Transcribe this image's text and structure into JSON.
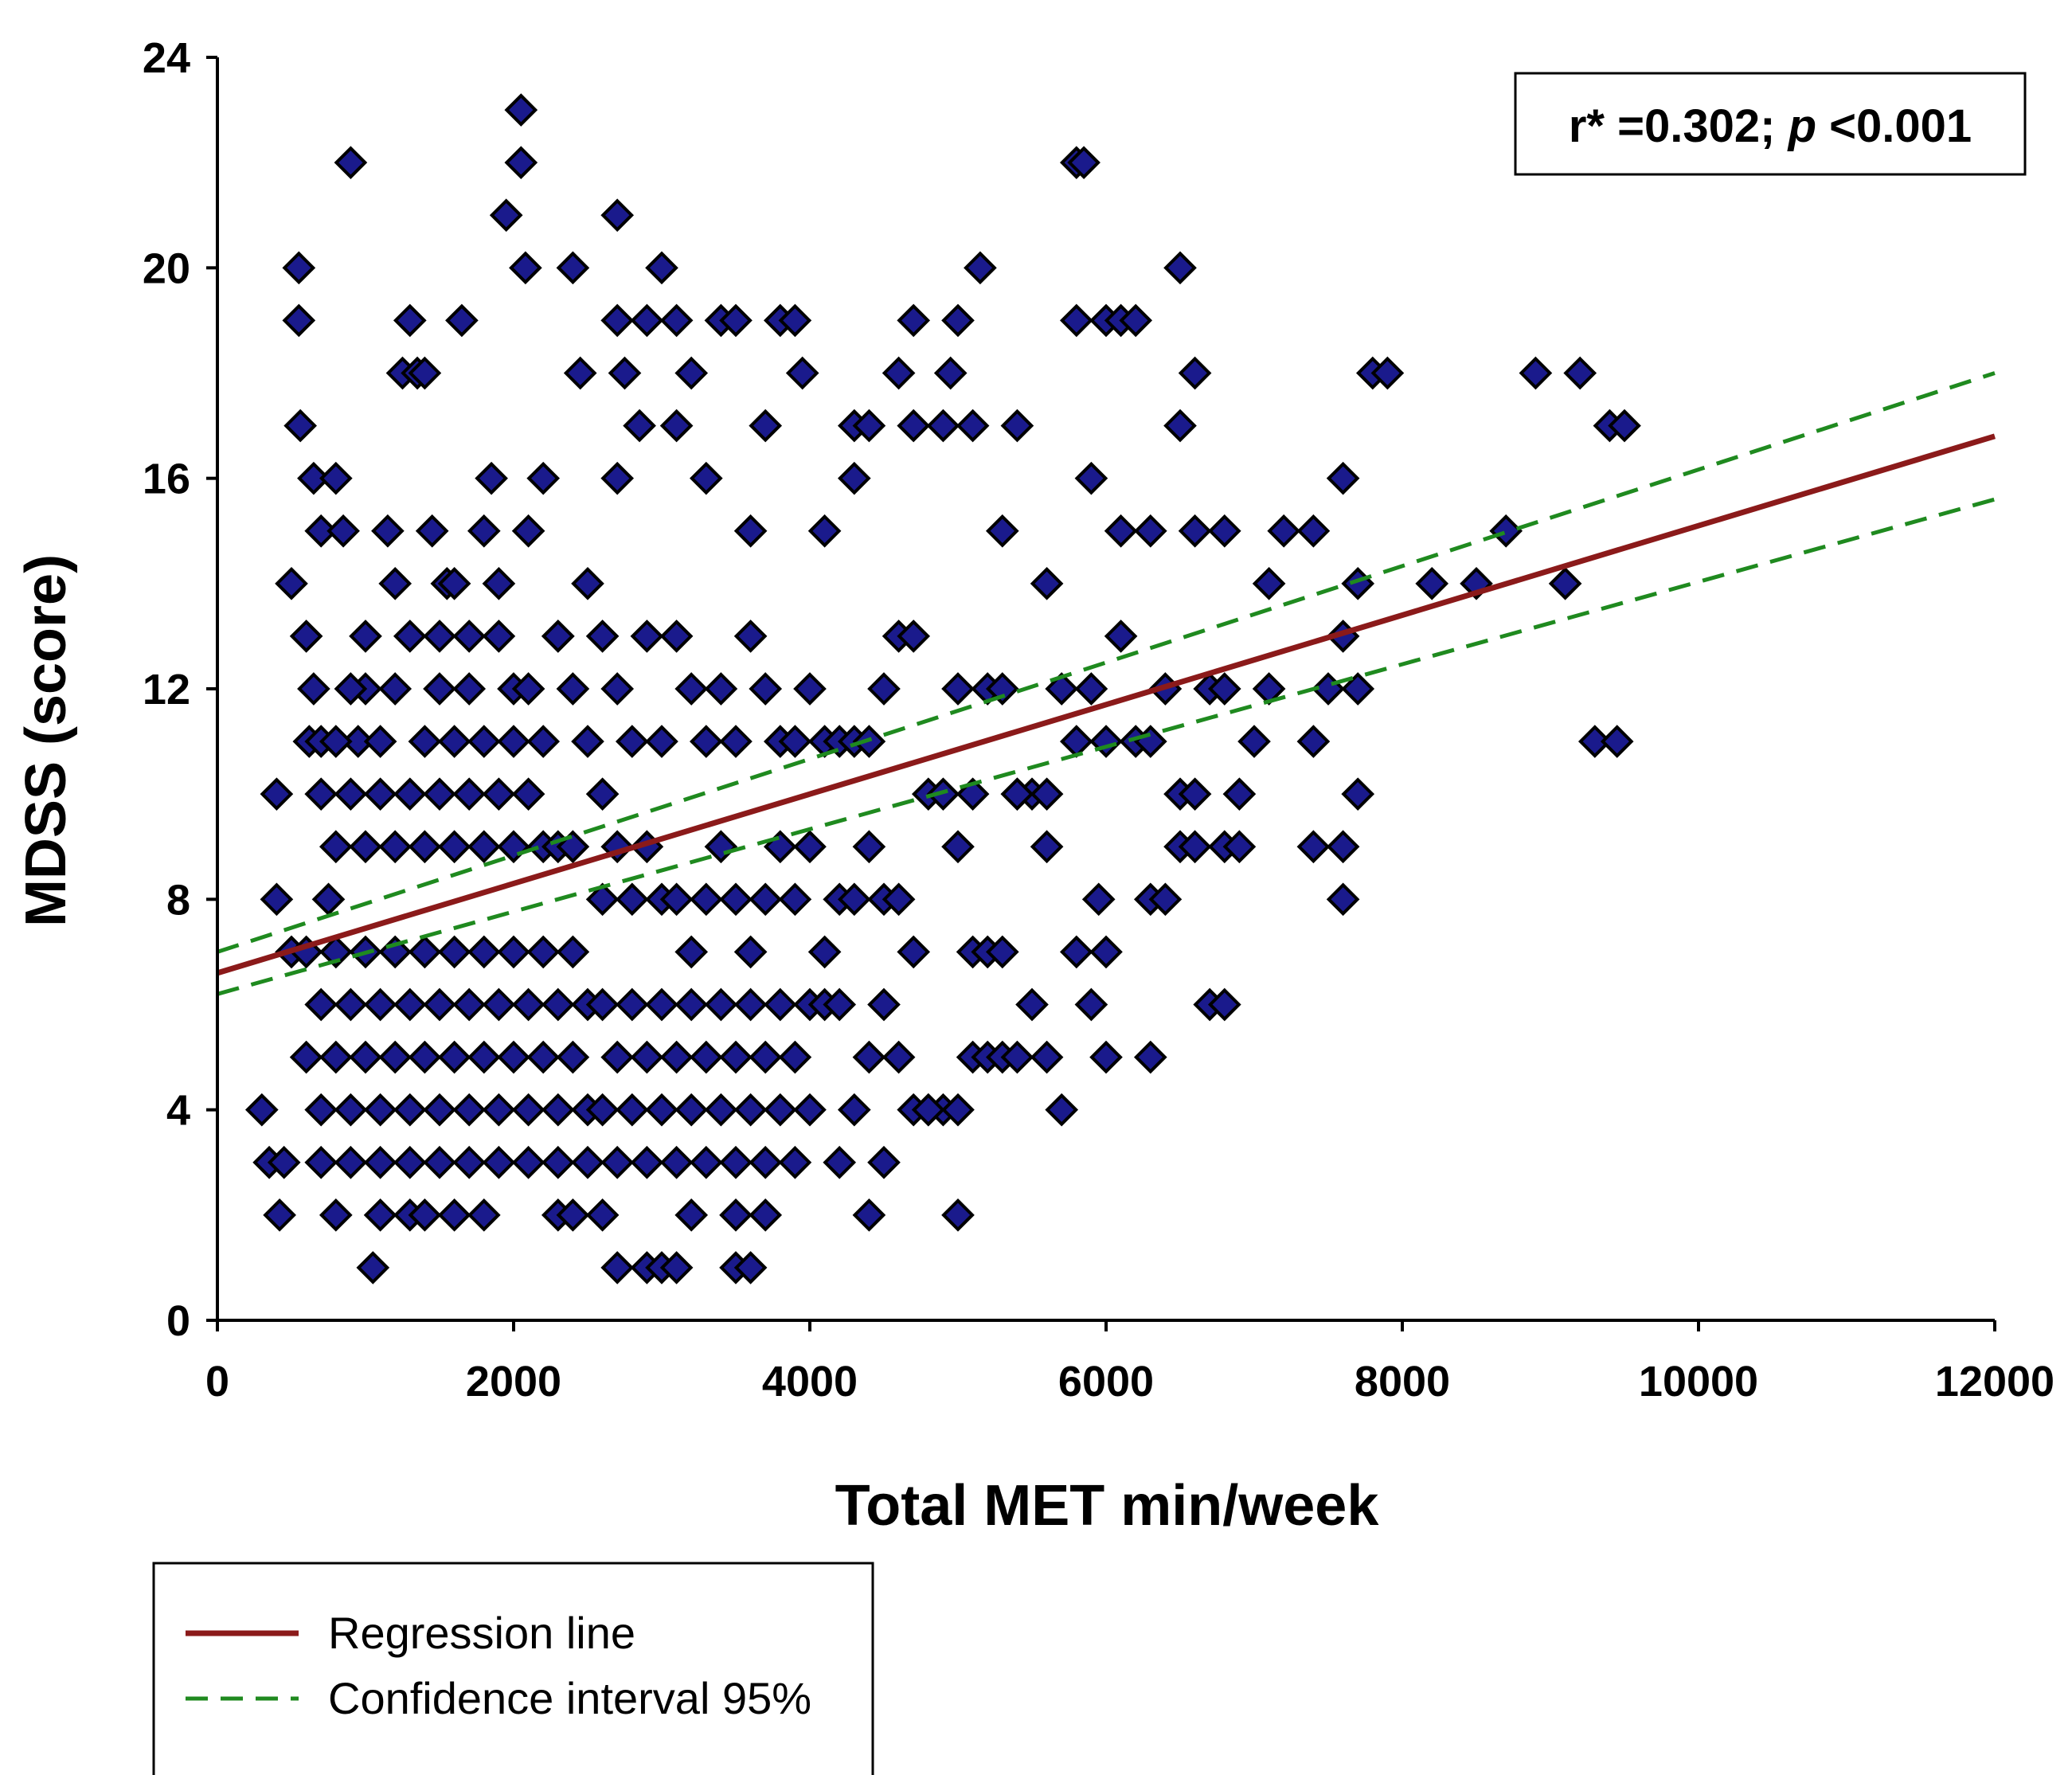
{
  "chart_data": {
    "type": "scatter",
    "title": "",
    "xlabel": "Total MET min/week",
    "ylabel": "MDSS (score)",
    "xlim": [
      0,
      12000
    ],
    "ylim": [
      0,
      24
    ],
    "xticks": [
      0,
      2000,
      4000,
      6000,
      8000,
      10000,
      12000
    ],
    "yticks": [
      0,
      4,
      8,
      12,
      16,
      20,
      24
    ],
    "grid": false,
    "annotation": {
      "r_label": "r* =0.302; ",
      "p_symbol": "p",
      "p_value": " <0.001"
    },
    "legend": {
      "position": "bottom-left",
      "entries": [
        {
          "label": "Regression line",
          "style": "solid",
          "color": "#8b1a1a"
        },
        {
          "label": "Confidence interval 95%",
          "style": "dashed",
          "color": "#1f8a1f"
        }
      ]
    },
    "regression": {
      "x": [
        0,
        12000
      ],
      "y": [
        6.6,
        16.8
      ],
      "color": "#8b1a1a"
    },
    "ci_upper": {
      "x": [
        0,
        12000
      ],
      "y": [
        7.0,
        18.0
      ],
      "color": "#1f8a1f"
    },
    "ci_lower": {
      "x": [
        0,
        12000
      ],
      "y": [
        6.2,
        15.6
      ],
      "color": "#1f8a1f"
    },
    "marker": {
      "shape": "diamond",
      "fill": "#1a1a8c",
      "stroke": "#000000"
    },
    "points": [
      [
        300,
        4
      ],
      [
        350,
        3
      ],
      [
        400,
        10
      ],
      [
        400,
        8
      ],
      [
        420,
        2
      ],
      [
        450,
        3
      ],
      [
        500,
        7
      ],
      [
        500,
        14
      ],
      [
        550,
        20
      ],
      [
        550,
        19
      ],
      [
        560,
        17
      ],
      [
        600,
        13
      ],
      [
        620,
        11
      ],
      [
        650,
        12
      ],
      [
        650,
        16
      ],
      [
        700,
        15
      ],
      [
        750,
        8
      ],
      [
        800,
        2
      ],
      [
        800,
        16
      ],
      [
        850,
        15
      ],
      [
        900,
        22
      ],
      [
        950,
        11
      ],
      [
        1000,
        12
      ],
      [
        1050,
        1
      ],
      [
        1100,
        2
      ],
      [
        1150,
        15
      ],
      [
        1200,
        14
      ],
      [
        1250,
        18
      ],
      [
        1300,
        19
      ],
      [
        1350,
        18
      ],
      [
        1400,
        18
      ],
      [
        1450,
        15
      ],
      [
        1500,
        13
      ],
      [
        1550,
        14
      ],
      [
        1600,
        14
      ],
      [
        1650,
        19
      ],
      [
        1700,
        13
      ],
      [
        1800,
        15
      ],
      [
        1850,
        16
      ],
      [
        1900,
        14
      ],
      [
        1950,
        21
      ],
      [
        2000,
        12
      ],
      [
        2050,
        23
      ],
      [
        2050,
        22
      ],
      [
        2080,
        20
      ],
      [
        2100,
        15
      ],
      [
        2200,
        16
      ],
      [
        2300,
        13
      ],
      [
        2400,
        20
      ],
      [
        2450,
        18
      ],
      [
        2500,
        14
      ],
      [
        2600,
        10
      ],
      [
        2700,
        21
      ],
      [
        2700,
        19
      ],
      [
        2750,
        18
      ],
      [
        2700,
        16
      ],
      [
        2850,
        17
      ],
      [
        2900,
        19
      ],
      [
        3000,
        20
      ],
      [
        3100,
        19
      ],
      [
        3100,
        17
      ],
      [
        3200,
        18
      ],
      [
        3300,
        16
      ],
      [
        3400,
        19
      ],
      [
        3500,
        19
      ],
      [
        3600,
        15
      ],
      [
        3700,
        17
      ],
      [
        3800,
        19
      ],
      [
        3900,
        19
      ],
      [
        3950,
        18
      ],
      [
        4100,
        15
      ],
      [
        4300,
        17
      ],
      [
        4300,
        16
      ],
      [
        4400,
        17
      ],
      [
        4600,
        18
      ],
      [
        4700,
        19
      ],
      [
        4700,
        17
      ],
      [
        4900,
        17
      ],
      [
        5000,
        19
      ],
      [
        4950,
        18
      ],
      [
        5100,
        17
      ],
      [
        5150,
        20
      ],
      [
        5300,
        15
      ],
      [
        5400,
        17
      ],
      [
        5600,
        14
      ],
      [
        5800,
        22
      ],
      [
        5850,
        22
      ],
      [
        5800,
        19
      ],
      [
        5900,
        16
      ],
      [
        6000,
        19
      ],
      [
        6100,
        19
      ],
      [
        6200,
        19
      ],
      [
        6100,
        15
      ],
      [
        6300,
        15
      ],
      [
        6500,
        17
      ],
      [
        6500,
        20
      ],
      [
        6600,
        18
      ],
      [
        6600,
        15
      ],
      [
        6800,
        15
      ],
      [
        7100,
        14
      ],
      [
        7200,
        15
      ],
      [
        7400,
        15
      ],
      [
        7600,
        16
      ],
      [
        7700,
        14
      ],
      [
        7800,
        18
      ],
      [
        7900,
        18
      ],
      [
        8200,
        14
      ],
      [
        8500,
        14
      ],
      [
        8700,
        15
      ],
      [
        8900,
        18
      ],
      [
        9100,
        14
      ],
      [
        9200,
        18
      ],
      [
        9300,
        11
      ],
      [
        9400,
        17
      ],
      [
        9450,
        11
      ],
      [
        9500,
        17
      ],
      [
        700,
        10
      ],
      [
        800,
        9
      ],
      [
        900,
        10
      ],
      [
        1000,
        9
      ],
      [
        1100,
        10
      ],
      [
        1200,
        9
      ],
      [
        1300,
        10
      ],
      [
        1400,
        9
      ],
      [
        1500,
        10
      ],
      [
        1600,
        9
      ],
      [
        1700,
        10
      ],
      [
        1800,
        9
      ],
      [
        1900,
        10
      ],
      [
        2000,
        9
      ],
      [
        2100,
        10
      ],
      [
        2200,
        9
      ],
      [
        2300,
        9
      ],
      [
        2400,
        9
      ],
      [
        600,
        7
      ],
      [
        700,
        6
      ],
      [
        800,
        7
      ],
      [
        900,
        6
      ],
      [
        1000,
        7
      ],
      [
        1100,
        6
      ],
      [
        1200,
        7
      ],
      [
        1300,
        6
      ],
      [
        1400,
        7
      ],
      [
        1500,
        6
      ],
      [
        1600,
        7
      ],
      [
        1700,
        6
      ],
      [
        1800,
        7
      ],
      [
        1900,
        6
      ],
      [
        2000,
        7
      ],
      [
        2100,
        6
      ],
      [
        2200,
        7
      ],
      [
        2300,
        6
      ],
      [
        2400,
        7
      ],
      [
        2500,
        6
      ],
      [
        600,
        5
      ],
      [
        700,
        4
      ],
      [
        800,
        5
      ],
      [
        900,
        4
      ],
      [
        1000,
        5
      ],
      [
        1100,
        4
      ],
      [
        1200,
        5
      ],
      [
        1300,
        4
      ],
      [
        1400,
        5
      ],
      [
        1500,
        4
      ],
      [
        1600,
        5
      ],
      [
        1700,
        4
      ],
      [
        1800,
        5
      ],
      [
        1900,
        4
      ],
      [
        2000,
        5
      ],
      [
        2100,
        4
      ],
      [
        2200,
        5
      ],
      [
        2300,
        4
      ],
      [
        2400,
        5
      ],
      [
        2500,
        4
      ],
      [
        700,
        3
      ],
      [
        900,
        3
      ],
      [
        1100,
        3
      ],
      [
        1300,
        3
      ],
      [
        1500,
        3
      ],
      [
        1700,
        3
      ],
      [
        1900,
        3
      ],
      [
        2100,
        3
      ],
      [
        2300,
        3
      ],
      [
        2500,
        3
      ],
      [
        1300,
        2
      ],
      [
        1400,
        2
      ],
      [
        1600,
        2
      ],
      [
        1800,
        2
      ],
      [
        2300,
        2
      ],
      [
        2400,
        2
      ],
      [
        2600,
        2
      ],
      [
        2700,
        1
      ],
      [
        2900,
        1
      ],
      [
        3000,
        1
      ],
      [
        3100,
        1
      ],
      [
        3200,
        2
      ],
      [
        3500,
        1
      ],
      [
        3600,
        1
      ],
      [
        3700,
        2
      ],
      [
        3500,
        2
      ],
      [
        700,
        11
      ],
      [
        800,
        11
      ],
      [
        900,
        12
      ],
      [
        1000,
        13
      ],
      [
        1100,
        11
      ],
      [
        1200,
        12
      ],
      [
        1300,
        13
      ],
      [
        1400,
        11
      ],
      [
        1500,
        12
      ],
      [
        1600,
        11
      ],
      [
        1700,
        12
      ],
      [
        1800,
        11
      ],
      [
        1900,
        13
      ],
      [
        2000,
        11
      ],
      [
        2100,
        12
      ],
      [
        2200,
        11
      ],
      [
        2300,
        13
      ],
      [
        2400,
        12
      ],
      [
        2500,
        11
      ],
      [
        2600,
        13
      ],
      [
        2700,
        12
      ],
      [
        2800,
        11
      ],
      [
        2900,
        13
      ],
      [
        3000,
        11
      ],
      [
        3100,
        13
      ],
      [
        3200,
        12
      ],
      [
        3300,
        11
      ],
      [
        3400,
        12
      ],
      [
        3500,
        11
      ],
      [
        3600,
        13
      ],
      [
        3700,
        12
      ],
      [
        3800,
        11
      ],
      [
        3900,
        11
      ],
      [
        4000,
        12
      ],
      [
        4100,
        11
      ],
      [
        4200,
        11
      ],
      [
        4300,
        11
      ],
      [
        4400,
        11
      ],
      [
        4500,
        12
      ],
      [
        4600,
        13
      ],
      [
        4700,
        13
      ],
      [
        4800,
        10
      ],
      [
        4900,
        10
      ],
      [
        5000,
        12
      ],
      [
        5100,
        10
      ],
      [
        5200,
        12
      ],
      [
        5300,
        12
      ],
      [
        5400,
        10
      ],
      [
        5500,
        10
      ],
      [
        5600,
        10
      ],
      [
        5700,
        12
      ],
      [
        5800,
        11
      ],
      [
        5900,
        12
      ],
      [
        6000,
        11
      ],
      [
        6100,
        13
      ],
      [
        6200,
        11
      ],
      [
        6300,
        11
      ],
      [
        6400,
        12
      ],
      [
        6500,
        10
      ],
      [
        6600,
        10
      ],
      [
        6700,
        12
      ],
      [
        6800,
        12
      ],
      [
        6900,
        10
      ],
      [
        7000,
        11
      ],
      [
        7100,
        12
      ],
      [
        7400,
        11
      ],
      [
        7500,
        12
      ],
      [
        7600,
        13
      ],
      [
        7700,
        12
      ],
      [
        7700,
        10
      ],
      [
        2600,
        8
      ],
      [
        2700,
        9
      ],
      [
        2800,
        8
      ],
      [
        2900,
        9
      ],
      [
        3000,
        8
      ],
      [
        3100,
        8
      ],
      [
        3200,
        7
      ],
      [
        3300,
        8
      ],
      [
        3400,
        9
      ],
      [
        3500,
        8
      ],
      [
        3600,
        7
      ],
      [
        3700,
        8
      ],
      [
        3800,
        9
      ],
      [
        3900,
        8
      ],
      [
        4000,
        9
      ],
      [
        4100,
        7
      ],
      [
        4200,
        8
      ],
      [
        4300,
        8
      ],
      [
        4400,
        9
      ],
      [
        4500,
        8
      ],
      [
        4600,
        8
      ],
      [
        4700,
        7
      ],
      [
        5000,
        9
      ],
      [
        5100,
        7
      ],
      [
        5200,
        7
      ],
      [
        5300,
        7
      ],
      [
        5400,
        10
      ],
      [
        5600,
        9
      ],
      [
        5800,
        7
      ],
      [
        5900,
        6
      ],
      [
        5950,
        8
      ],
      [
        6000,
        7
      ],
      [
        6300,
        8
      ],
      [
        6400,
        8
      ],
      [
        6500,
        9
      ],
      [
        6600,
        9
      ],
      [
        6800,
        9
      ],
      [
        6900,
        9
      ],
      [
        7400,
        9
      ],
      [
        7600,
        9
      ],
      [
        7600,
        8
      ],
      [
        2600,
        6
      ],
      [
        2700,
        5
      ],
      [
        2800,
        6
      ],
      [
        2900,
        5
      ],
      [
        3000,
        6
      ],
      [
        3100,
        5
      ],
      [
        3200,
        6
      ],
      [
        3300,
        5
      ],
      [
        3400,
        6
      ],
      [
        3500,
        5
      ],
      [
        3600,
        6
      ],
      [
        3700,
        5
      ],
      [
        3800,
        6
      ],
      [
        3900,
        5
      ],
      [
        4000,
        6
      ],
      [
        4100,
        6
      ],
      [
        4200,
        6
      ],
      [
        4300,
        4
      ],
      [
        4400,
        5
      ],
      [
        4500,
        6
      ],
      [
        4600,
        5
      ],
      [
        4700,
        4
      ],
      [
        4800,
        4
      ],
      [
        4900,
        4
      ],
      [
        5000,
        4
      ],
      [
        5100,
        5
      ],
      [
        5200,
        5
      ],
      [
        5300,
        5
      ],
      [
        5400,
        5
      ],
      [
        5500,
        6
      ],
      [
        5600,
        5
      ],
      [
        5700,
        4
      ],
      [
        6000,
        5
      ],
      [
        6300,
        5
      ],
      [
        6700,
        6
      ],
      [
        6800,
        6
      ],
      [
        2600,
        4
      ],
      [
        2700,
        3
      ],
      [
        2800,
        4
      ],
      [
        2900,
        3
      ],
      [
        3000,
        4
      ],
      [
        3100,
        3
      ],
      [
        3200,
        4
      ],
      [
        3300,
        3
      ],
      [
        3400,
        4
      ],
      [
        3500,
        3
      ],
      [
        3600,
        4
      ],
      [
        3700,
        3
      ],
      [
        3800,
        4
      ],
      [
        3900,
        3
      ],
      [
        4000,
        4
      ],
      [
        4200,
        3
      ],
      [
        4400,
        2
      ],
      [
        4500,
        3
      ],
      [
        4800,
        4
      ],
      [
        5000,
        2
      ]
    ]
  }
}
